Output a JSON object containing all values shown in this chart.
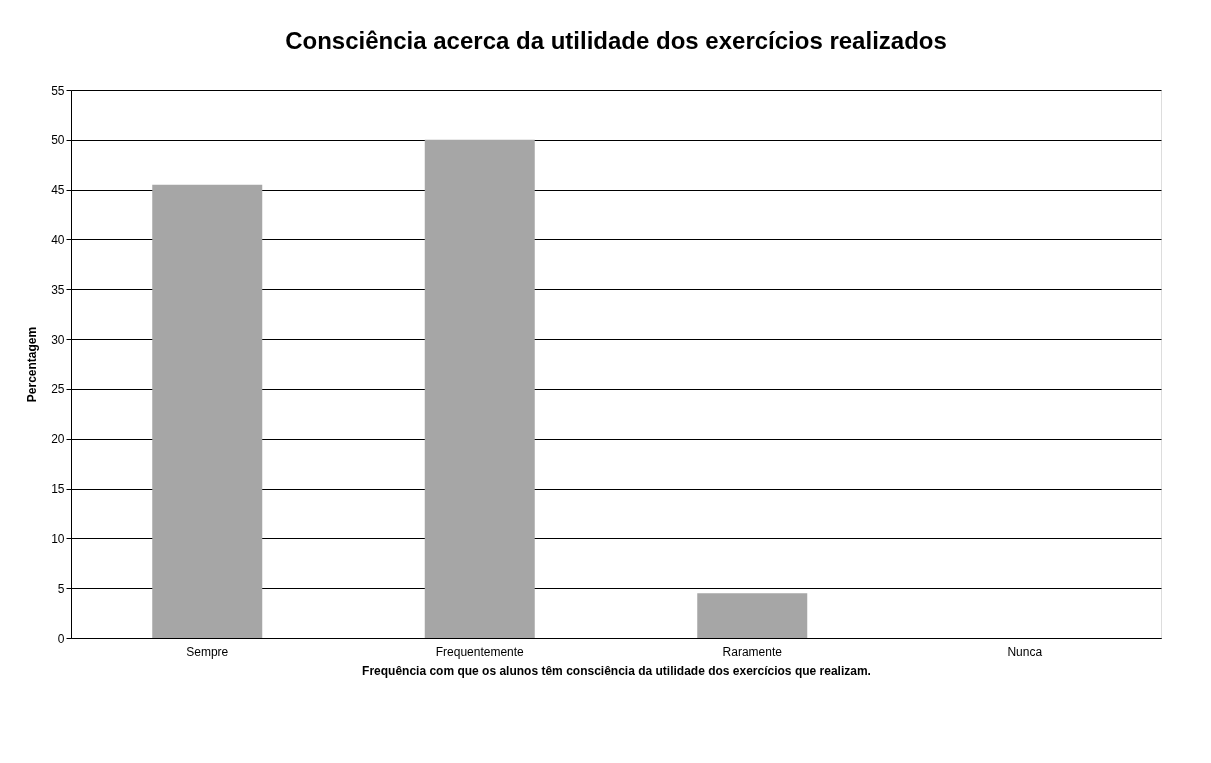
{
  "chart_data": {
    "type": "bar",
    "title": "Consciência acerca da utilidade dos exercícios realizados",
    "xlabel": "Frequência com que os alunos têm consciência  da utilidade  dos exercícios que realizam.",
    "ylabel": "Percentagem",
    "categories": [
      "Sempre",
      "Frequentemente",
      "Raramente",
      "Nunca"
    ],
    "values": [
      45.5,
      50,
      4.5,
      0
    ],
    "color": "#a6a6a6",
    "ylim": [
      0,
      55
    ],
    "yticks": [
      0,
      5,
      10,
      15,
      20,
      25,
      30,
      35,
      40,
      45,
      50,
      55
    ],
    "grid": "y"
  }
}
